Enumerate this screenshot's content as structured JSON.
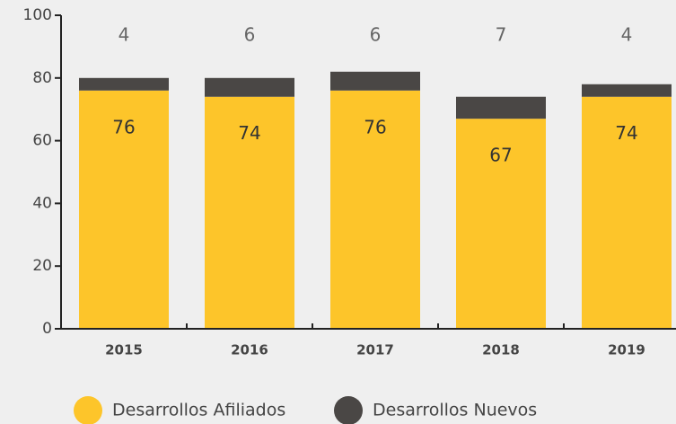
{
  "chart_data": {
    "type": "stacked_bar",
    "categories": [
      "2015",
      "2016",
      "2017",
      "2018",
      "2019"
    ],
    "series": [
      {
        "name": "Desarrollos Afiliados",
        "color": "#fdc52a",
        "values": [
          76,
          74,
          76,
          67,
          74
        ]
      },
      {
        "name": "Desarrollos Nuevos",
        "color": "#4a4745",
        "values": [
          4,
          6,
          6,
          7,
          4
        ]
      }
    ],
    "ylim": [
      0,
      100
    ],
    "yticks": [
      0,
      20,
      40,
      60,
      80,
      100
    ],
    "legend": "bottom"
  }
}
